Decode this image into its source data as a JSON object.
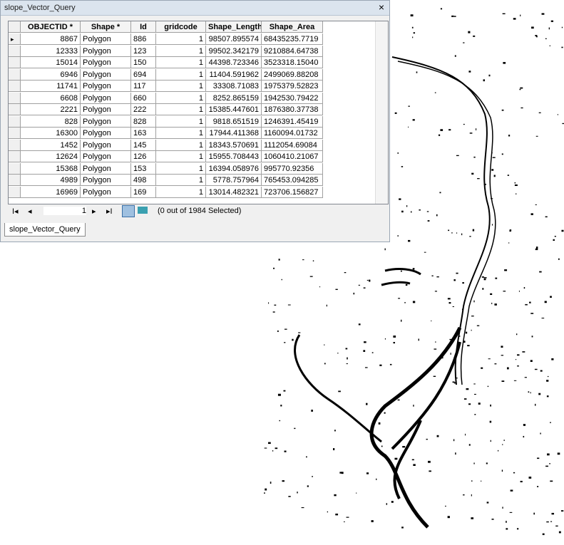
{
  "window": {
    "title": "slope_Vector_Query",
    "close": "×"
  },
  "table": {
    "columns": [
      "OBJECTID *",
      "Shape *",
      "Id",
      "gridcode",
      "Shape_Length",
      "Shape_Area"
    ],
    "rows": [
      [
        "8867",
        "Polygon",
        "886",
        "1",
        "98507.895574",
        "68435235.7719"
      ],
      [
        "12333",
        "Polygon",
        "123",
        "1",
        "99502.342179",
        "9210884.64738"
      ],
      [
        "15014",
        "Polygon",
        "150",
        "1",
        "44398.723346",
        "3523318.15040"
      ],
      [
        "6946",
        "Polygon",
        "694",
        "1",
        "11404.591962",
        "2499069.88208"
      ],
      [
        "11741",
        "Polygon",
        "117",
        "1",
        "33308.71083",
        "1975379.52823"
      ],
      [
        "6608",
        "Polygon",
        "660",
        "1",
        "8252.865159",
        "1942530.79422"
      ],
      [
        "2221",
        "Polygon",
        "222",
        "1",
        "15385.447601",
        "1876380.37738"
      ],
      [
        "828",
        "Polygon",
        "828",
        "1",
        "9818.651519",
        "1246391.45419"
      ],
      [
        "16300",
        "Polygon",
        "163",
        "1",
        "17944.411368",
        "1160094.01732"
      ],
      [
        "1452",
        "Polygon",
        "145",
        "1",
        "18343.570691",
        "1112054.69084"
      ],
      [
        "12624",
        "Polygon",
        "126",
        "1",
        "15955.708443",
        "1060410.21067"
      ],
      [
        "15368",
        "Polygon",
        "153",
        "1",
        "16394.058976",
        "995770.92356"
      ],
      [
        "4989",
        "Polygon",
        "498",
        "1",
        "5778.757964",
        "765453.094285"
      ],
      [
        "16969",
        "Polygon",
        "169",
        "1",
        "13014.482321",
        "723706.156827"
      ]
    ]
  },
  "navigation": {
    "record": "1",
    "status": "(0 out of 1984 Selected)"
  },
  "tab": "slope_Vector_Query"
}
